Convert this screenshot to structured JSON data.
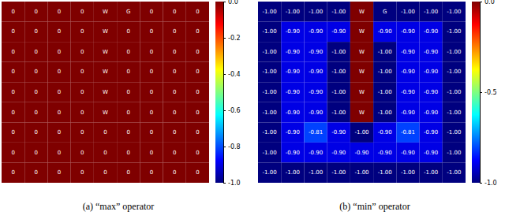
{
  "chart_data": [
    {
      "type": "heatmap",
      "title": "(a) “max” operator",
      "cells": [
        [
          0,
          0,
          0,
          0,
          0,
          0,
          0,
          0,
          0
        ],
        [
          0,
          0,
          0,
          0,
          0,
          0,
          0,
          0,
          0
        ],
        [
          0,
          0,
          0,
          0,
          0,
          0,
          0,
          0,
          0
        ],
        [
          0,
          0,
          0,
          0,
          0,
          0,
          0,
          0,
          0
        ],
        [
          0,
          0,
          0,
          0,
          0,
          0,
          0,
          0,
          0
        ],
        [
          0,
          0,
          0,
          0,
          0,
          0,
          0,
          0,
          0
        ],
        [
          0,
          0,
          0,
          0,
          0,
          0,
          0,
          0,
          0
        ],
        [
          0,
          0,
          0,
          0,
          0,
          0,
          0,
          0,
          0
        ],
        [
          0,
          0,
          0,
          0,
          0,
          0,
          0,
          0,
          0
        ]
      ],
      "cell_labels": [
        [
          "0",
          "0",
          "0",
          "0",
          "W",
          "G",
          "0",
          "0",
          "0"
        ],
        [
          "0",
          "0",
          "0",
          "0",
          "W",
          "0",
          "0",
          "0",
          "0"
        ],
        [
          "0",
          "0",
          "0",
          "0",
          "W",
          "0",
          "0",
          "0",
          "0"
        ],
        [
          "0",
          "0",
          "0",
          "0",
          "W",
          "0",
          "0",
          "0",
          "0"
        ],
        [
          "0",
          "0",
          "0",
          "0",
          "W",
          "0",
          "0",
          "0",
          "0"
        ],
        [
          "0",
          "0",
          "0",
          "0",
          "W",
          "0",
          "0",
          "0",
          "0"
        ],
        [
          "0",
          "0",
          "0",
          "0",
          "0",
          "0",
          "0",
          "0",
          "0"
        ],
        [
          "0",
          "0",
          "0",
          "0",
          "0",
          "0",
          "0",
          "0",
          "0"
        ],
        [
          "0",
          "0",
          "0",
          "0",
          "0",
          "0",
          "0",
          "0",
          "0"
        ]
      ],
      "colorbar_range": [
        -1,
        0
      ],
      "colorbar_ticks": [
        {
          "value": 0,
          "label": "0.0"
        },
        -0.2,
        -0.4,
        -0.6,
        -0.8,
        {
          "value": -1,
          "label": "-1.0"
        }
      ]
    },
    {
      "type": "heatmap",
      "title": "(b) “min” operator",
      "cells": [
        [
          -1,
          -1,
          -1,
          -1,
          0,
          -1,
          -1,
          -1,
          -1
        ],
        [
          -1,
          -0.9,
          -0.9,
          -0.9,
          0,
          -0.9,
          -0.9,
          -0.9,
          -1
        ],
        [
          -1,
          -0.9,
          -0.9,
          -1,
          0,
          -1,
          -0.9,
          -0.9,
          -1
        ],
        [
          -1,
          -0.9,
          -0.9,
          -1,
          0,
          -1,
          -0.9,
          -0.9,
          -1
        ],
        [
          -1,
          -0.9,
          -0.9,
          -1,
          0,
          -1,
          -0.9,
          -0.9,
          -1
        ],
        [
          -1,
          -0.9,
          -0.9,
          -1,
          0,
          -1,
          -0.9,
          -0.9,
          -1
        ],
        [
          -1,
          -0.9,
          -0.81,
          -0.9,
          -1,
          -0.9,
          -0.81,
          -0.9,
          -1
        ],
        [
          -1,
          -0.9,
          -0.9,
          -0.9,
          -0.9,
          -0.9,
          -0.9,
          -0.9,
          -1
        ],
        [
          -1,
          -1,
          -1,
          -1,
          -1,
          -1,
          -1,
          -1,
          -1
        ]
      ],
      "cell_labels": [
        [
          "-1.00",
          "-1.00",
          "-1.00",
          "-1.00",
          "W",
          "G",
          "-1.00",
          "-1.00",
          "-1.00"
        ],
        [
          "-1.00",
          "-0.90",
          "-0.90",
          "-0.90",
          "W",
          "-0.90",
          "-0.90",
          "-0.90",
          "-1.00"
        ],
        [
          "-1.00",
          "-0.90",
          "-0.90",
          "-1.00",
          "W",
          "-1.00",
          "-0.90",
          "-0.90",
          "-1.00"
        ],
        [
          "-1.00",
          "-0.90",
          "-0.90",
          "-1.00",
          "W",
          "-1.00",
          "-0.90",
          "-0.90",
          "-1.00"
        ],
        [
          "-1.00",
          "-0.90",
          "-0.90",
          "-1.00",
          "W",
          "-1.00",
          "-0.90",
          "-0.90",
          "-1.00"
        ],
        [
          "-1.00",
          "-0.90",
          "-0.90",
          "-1.00",
          "W",
          "-1.00",
          "-0.90",
          "-0.90",
          "-1.00"
        ],
        [
          "-1.00",
          "-0.90",
          "-0.81",
          "-0.90",
          "-1.00",
          "-0.90",
          "-0.81",
          "-0.90",
          "-1.00"
        ],
        [
          "-1.00",
          "-0.90",
          "-0.90",
          "-0.90",
          "-0.90",
          "-0.90",
          "-0.90",
          "-0.90",
          "-1.00"
        ],
        [
          "-1.00",
          "-1.00",
          "-1.00",
          "-1.00",
          "-1.00",
          "-1.00",
          "-1.00",
          "-1.00",
          "-1.00"
        ]
      ],
      "colorbar_range": [
        -1,
        0
      ],
      "colorbar_ticks": [
        {
          "value": 0,
          "label": "0.0"
        },
        -0.5,
        {
          "value": -1,
          "label": "-1.0"
        }
      ]
    }
  ]
}
